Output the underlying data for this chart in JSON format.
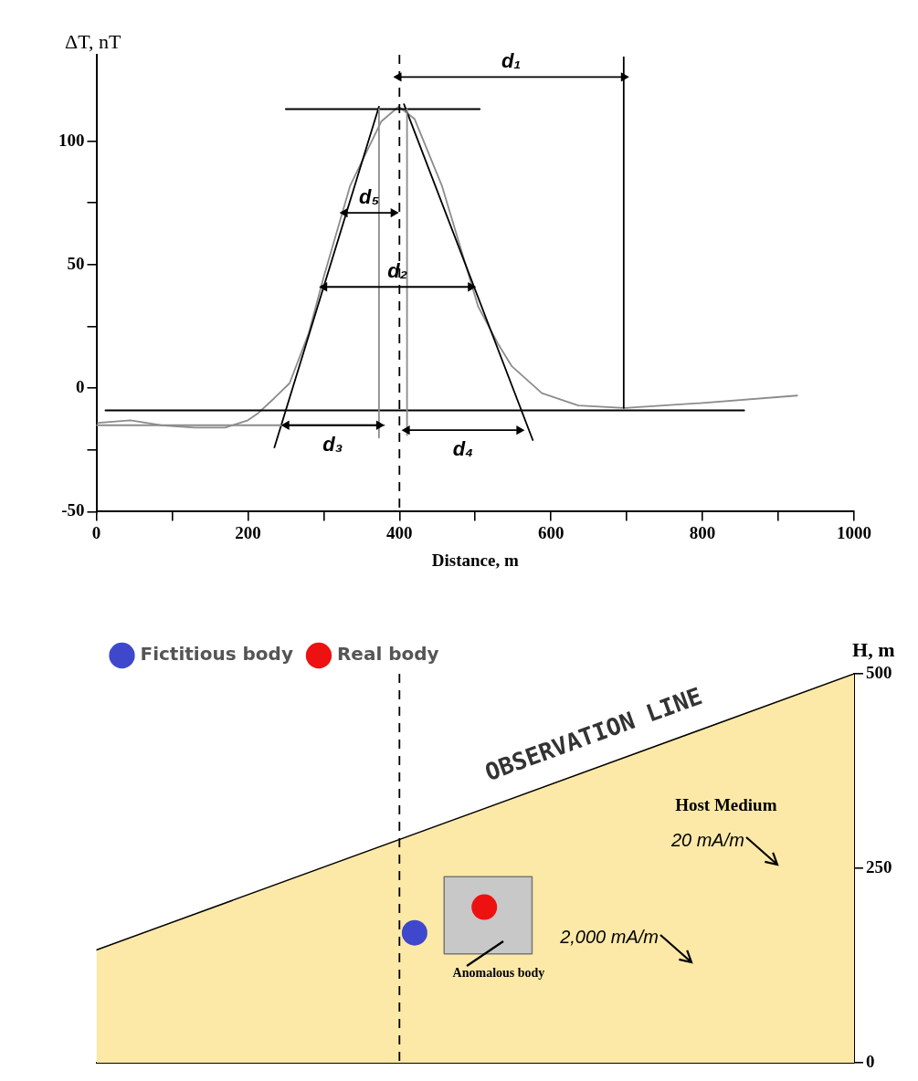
{
  "chart_data": [
    {
      "type": "line",
      "xlabel": "Distance, m",
      "ylabel": "ΔT, nT",
      "xlim": [
        0,
        1000
      ],
      "ylim": [
        -50,
        135
      ],
      "xticks": [
        0,
        {
          "value": 100,
          "label": null
        },
        200,
        {
          "value": 300,
          "label": null
        },
        400,
        {
          "value": 500,
          "label": null
        },
        600,
        {
          "value": 700,
          "label": null
        },
        800,
        {
          "value": 900,
          "label": null
        },
        1000
      ],
      "yticks": [
        -50,
        {
          "value": -25,
          "label": null
        },
        0,
        {
          "value": 25,
          "label": null
        },
        50,
        {
          "value": 75,
          "label": null
        },
        100
      ],
      "ref_lines": [
        {
          "axis": "x",
          "value": 400,
          "color": "#000000",
          "line_style": "dashed"
        }
      ],
      "series": [
        {
          "color": "#8c8c8c",
          "x": [
            2,
            45,
            85,
            130,
            170,
            200,
            214,
            235,
            255,
            280,
            300,
            335,
            376,
            399,
            420,
            456,
            504,
            530,
            548,
            588,
            636,
            697,
            800,
            925
          ],
          "values": [
            -14,
            -13,
            -15,
            -16,
            -16,
            -13,
            -10,
            -4,
            2,
            22,
            45,
            82,
            108,
            114,
            109,
            82,
            33,
            18,
            9,
            -2,
            -7,
            -8,
            -6,
            -3
          ]
        },
        {
          "color": "#000000",
          "x": [
            235,
            373
          ],
          "values": [
            -24,
            114
          ]
        },
        {
          "color": "#000000",
          "x": [
            406,
            576
          ],
          "values": [
            115,
            -21
          ]
        },
        {
          "color": "#000000",
          "x": [
            250,
            506
          ],
          "values": [
            113,
            113
          ]
        },
        {
          "color": "#000000",
          "x": [
            12,
            855
          ],
          "values": [
            -9,
            -9
          ]
        },
        {
          "color": "#8c8c8c",
          "x": [
            0,
            380
          ],
          "values": [
            -15,
            -15
          ]
        },
        {
          "color": "#8c8c8c",
          "x": [
            373,
            373
          ],
          "values": [
            113,
            -20
          ]
        },
        {
          "color": "#8c8c8c",
          "x": [
            410,
            410
          ],
          "values": [
            113,
            -19
          ]
        },
        {
          "color": "#000000",
          "x": [
            696,
            696
          ],
          "values": [
            -8,
            134
          ]
        },
        {
          "name": "d₁",
          "color": "#000000",
          "marker": "triangle",
          "x": [
            399,
            696
          ],
          "values": [
            126,
            126
          ]
        },
        {
          "name": "d₂",
          "color": "#000000",
          "marker": "triangle",
          "x": [
            301,
            494
          ],
          "values": [
            41,
            41
          ]
        },
        {
          "name": "d₃",
          "color": "#000000",
          "marker": "triangle",
          "x": [
            251,
            373
          ],
          "values": [
            -15,
            -15
          ]
        },
        {
          "name": "d₄",
          "color": "#000000",
          "marker": "triangle",
          "x": [
            410,
            558
          ],
          "values": [
            -17,
            -17
          ]
        },
        {
          "name": "d₅",
          "color": "#000000",
          "marker": "triangle",
          "x": [
            328,
            392
          ],
          "values": [
            71,
            71
          ]
        }
      ]
    },
    {
      "type": "area",
      "y2label": "H, m",
      "xlim": [
        0,
        1000
      ],
      "y2lim": [
        0,
        500
      ],
      "y2ticks": [
        0,
        250,
        500
      ],
      "tick_labels": "y",
      "legend": "top left",
      "ref_lines": [
        {
          "axis": "x",
          "value": 400,
          "color": "#000000",
          "line_style": "dashed"
        }
      ],
      "series": [
        {
          "axis": "y2",
          "color": "#fce9a7",
          "x": [
            0,
            1000
          ],
          "values": [
            145,
            500
          ]
        },
        {
          "axis": "y2",
          "color": "#c8c8c8",
          "x": [
            459,
            459,
            575,
            575,
            459
          ],
          "values": [
            140,
            239,
            239,
            140,
            140
          ]
        },
        {
          "axis": "y2",
          "type": "scatter",
          "name": "Fictitious body",
          "color": "#3f48cc",
          "marker": "circle",
          "x": [
            420
          ],
          "values": [
            167
          ]
        },
        {
          "axis": "y2",
          "type": "scatter",
          "name": "Real body",
          "color": "#ee1111",
          "marker": "circle",
          "x": [
            512
          ],
          "values": [
            200
          ]
        }
      ],
      "annotations": [
        "OBSERVATION LINE",
        "Host Medium",
        "20 mA/m",
        "2,000 mA/m",
        "Anomalous body"
      ]
    }
  ]
}
